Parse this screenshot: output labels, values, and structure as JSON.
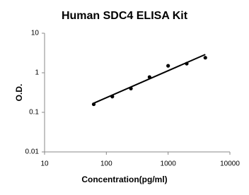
{
  "chart_data": {
    "type": "scatter",
    "title": "Human SDC4 ELISA Kit",
    "x_label": "Concentration(pg/ml)",
    "y_label": "O.D.",
    "log_x": true,
    "log_y": true,
    "xlim": [
      10,
      10000
    ],
    "xticks": [
      10,
      100,
      1000,
      10000
    ],
    "ylim": [
      0.01,
      10
    ],
    "yticks": [
      0.01,
      0.1,
      1,
      10
    ],
    "series": [
      {
        "style": "markers",
        "color": "#000000",
        "x": [
          62.5,
          125,
          250,
          500,
          1000,
          2000,
          4000
        ],
        "values": [
          0.16,
          0.25,
          0.4,
          0.78,
          1.5,
          1.7,
          2.4
        ]
      },
      {
        "style": "line",
        "color": "#000000",
        "x": [
          62.5,
          4000
        ],
        "values": [
          0.17,
          2.9
        ]
      }
    ]
  }
}
